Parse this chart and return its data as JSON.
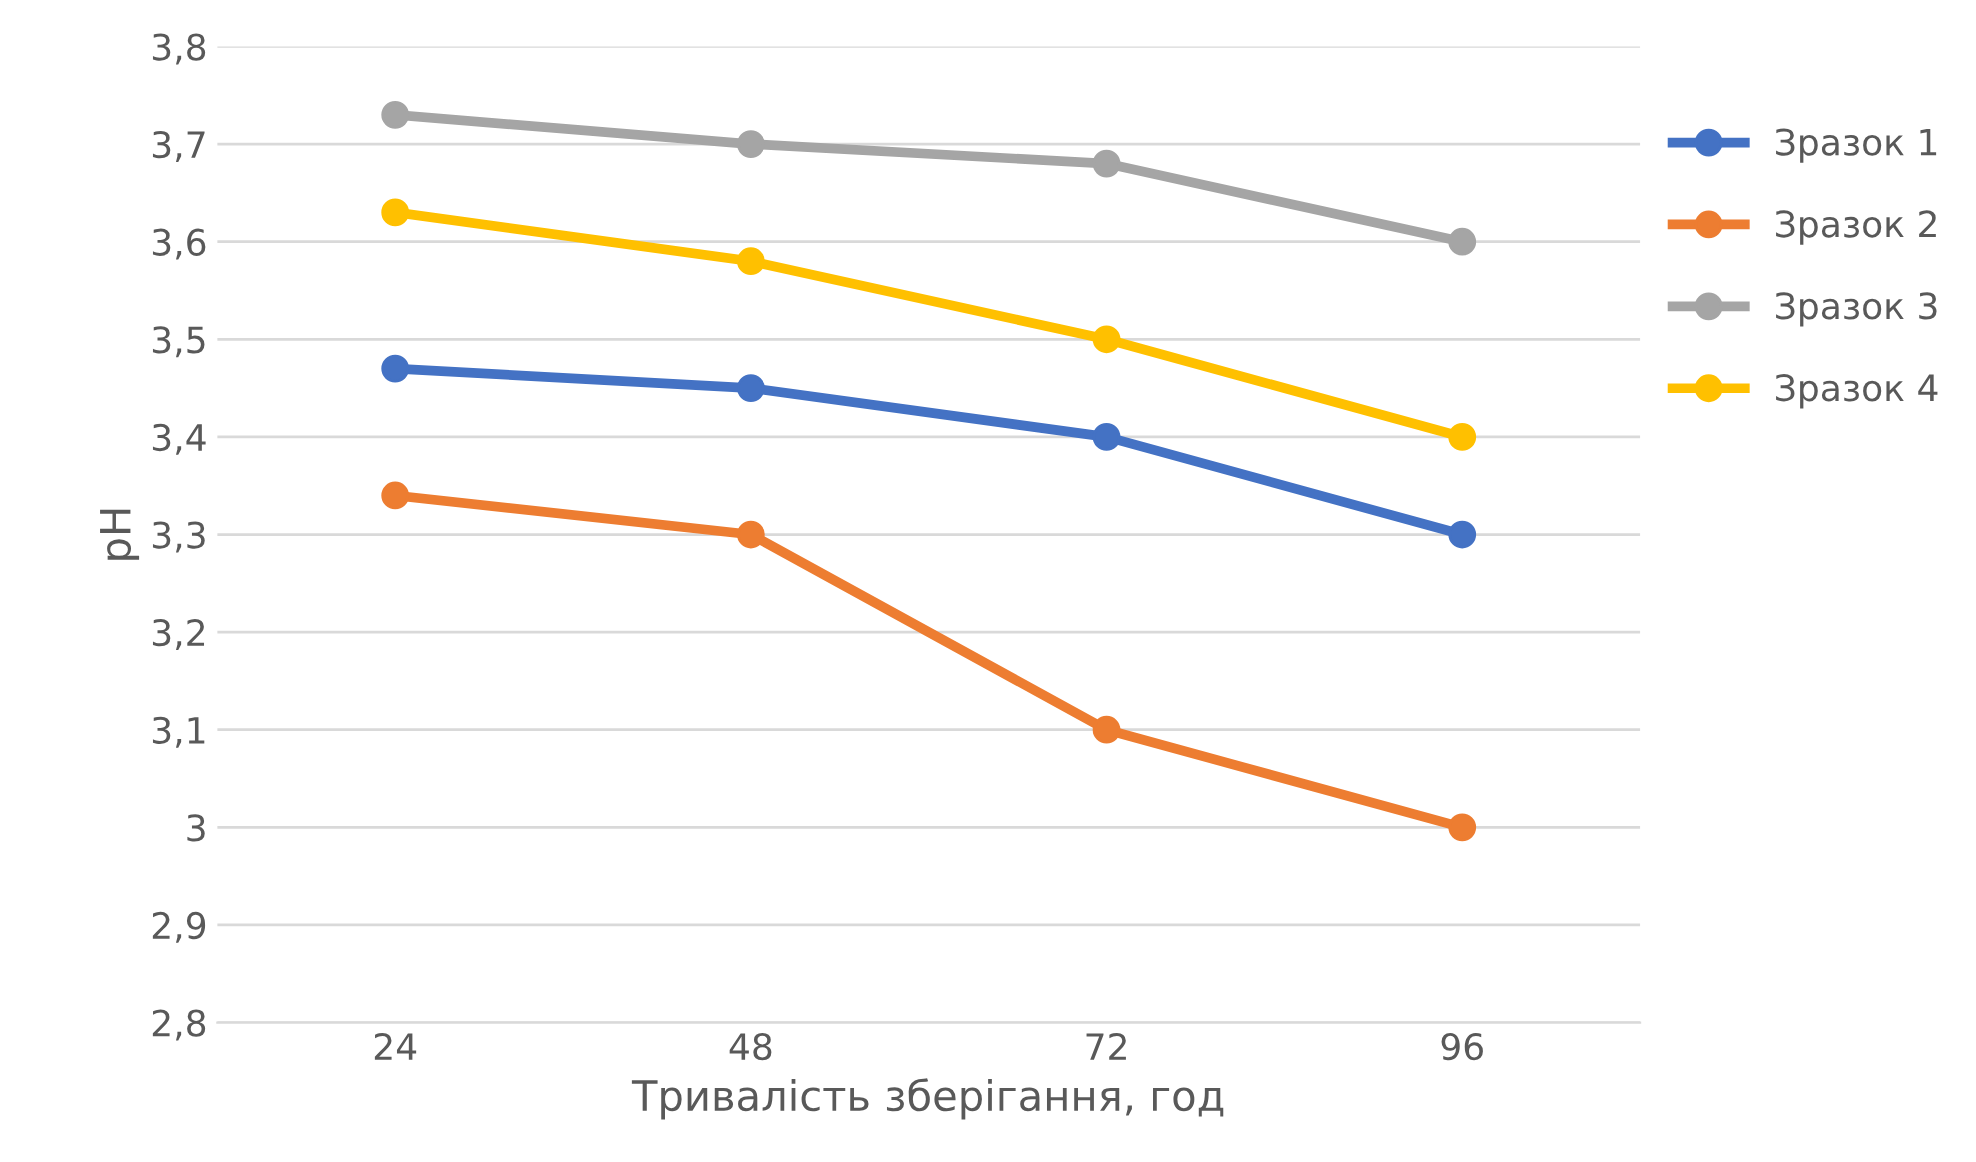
{
  "chart_data": {
    "type": "line",
    "xlabel": "Тривалість зберігання, год",
    "ylabel": "pH",
    "categories": [
      "24",
      "48",
      "72",
      "96"
    ],
    "series": [
      {
        "name": "Зразок 1",
        "color": "#4472c4",
        "values": [
          3.47,
          3.45,
          3.4,
          3.3
        ]
      },
      {
        "name": "Зразок 2",
        "color": "#ed7d31",
        "values": [
          3.34,
          3.3,
          3.1,
          3.0
        ]
      },
      {
        "name": "Зразок 3",
        "color": "#a5a5a5",
        "values": [
          3.73,
          3.7,
          3.68,
          3.6
        ]
      },
      {
        "name": "Зразок 4",
        "color": "#ffc000",
        "values": [
          3.63,
          3.58,
          3.5,
          3.4
        ]
      }
    ],
    "ylim": [
      2.8,
      3.8
    ],
    "yticks": [
      {
        "value": 2.8,
        "label": "2,8"
      },
      {
        "value": 2.9,
        "label": "2,9"
      },
      3,
      {
        "value": 3.1,
        "label": "3,1"
      },
      {
        "value": 3.2,
        "label": "3,2"
      },
      {
        "value": 3.3,
        "label": "3,3"
      },
      {
        "value": 3.4,
        "label": "3,4"
      },
      {
        "value": 3.5,
        "label": "3,5"
      },
      {
        "value": 3.6,
        "label": "3,6"
      },
      {
        "value": 3.7,
        "label": "3,7"
      },
      {
        "value": 3.8,
        "label": "3,8"
      }
    ],
    "grid": "y",
    "legend": "right",
    "marker": "circle",
    "line_style": "solid"
  }
}
